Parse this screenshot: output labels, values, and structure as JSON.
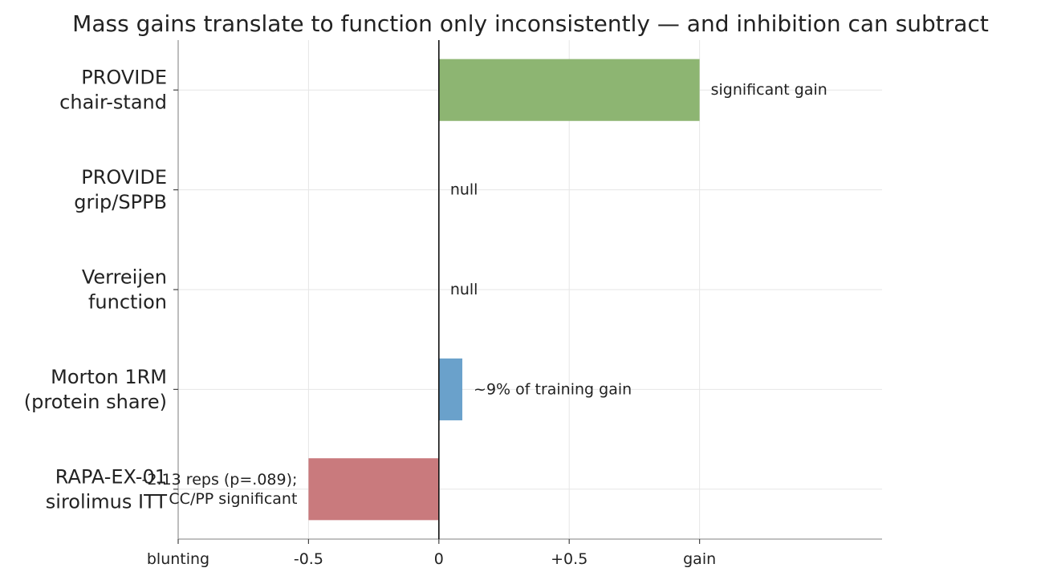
{
  "chart_data": {
    "type": "bar",
    "orientation": "horizontal",
    "title": "Mass gains translate to function only inconsistently — and inhibition can subtract",
    "xlabel": "",
    "ylabel": "",
    "xlim": [
      -1.0,
      1.7
    ],
    "grid": true,
    "x_ticks": [
      {
        "value": -1.0,
        "label": "blunting"
      },
      {
        "value": -0.5,
        "label": "-0.5"
      },
      {
        "value": 0,
        "label": "0"
      },
      {
        "value": 0.5,
        "label": "+0.5"
      },
      {
        "value": 1.0,
        "label": "gain"
      }
    ],
    "categories": [
      [
        "PROVIDE",
        "chair-stand"
      ],
      [
        "PROVIDE",
        "grip/SPPB"
      ],
      [
        "Verreijen",
        "function"
      ],
      [
        "Morton 1RM",
        "(protein share)"
      ],
      [
        "RAPA-EX-01",
        "sirolimus ITT"
      ]
    ],
    "values": [
      1.0,
      0,
      0,
      0.09,
      -0.5
    ],
    "bar_colors": [
      "#8db572",
      null,
      null,
      "#6aa1cb",
      "#c97a7d"
    ],
    "bar_labels": [
      [
        "significant gain"
      ],
      [
        "null"
      ],
      [
        "null"
      ],
      [
        "~9% of training gain"
      ],
      [
        "-2.13 reps (p=.089);",
        "CC/PP significant"
      ]
    ]
  }
}
